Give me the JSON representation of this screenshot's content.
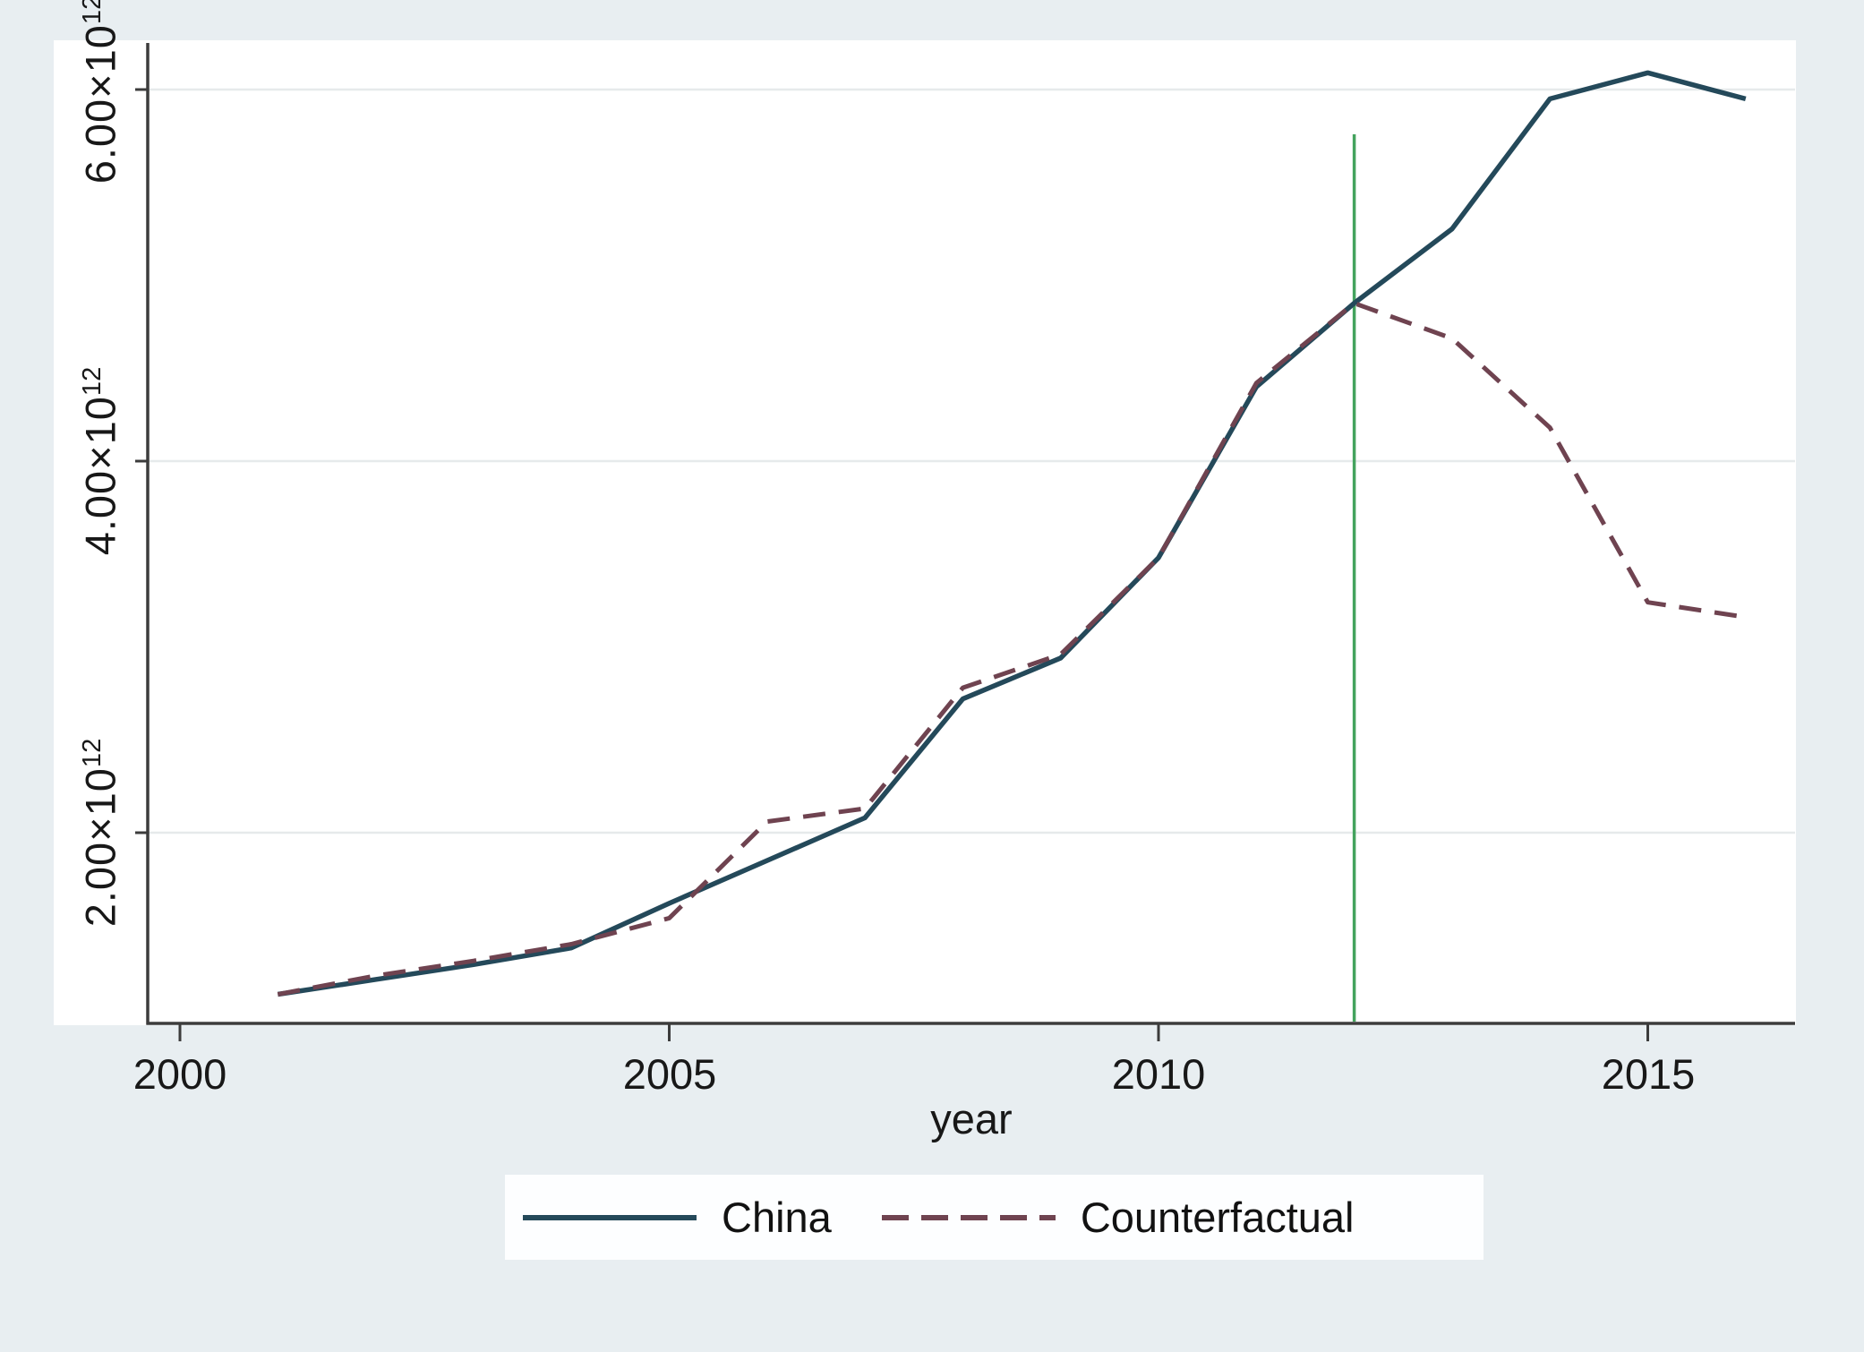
{
  "figure": {
    "background_color": "#e8eef1",
    "plot_background_color": "#ffffff",
    "axis_color": "#3c3c3c",
    "gridline_color": "#e6eaeb"
  },
  "axes": {
    "x_label": "year",
    "x_ticks": [
      {
        "label": "2000",
        "value": 2000
      },
      {
        "label": "2005",
        "value": 2005
      },
      {
        "label": "2010",
        "value": 2010
      },
      {
        "label": "2015",
        "value": 2015
      }
    ],
    "y_ticks": [
      {
        "base": "6.00×10",
        "exp": "12",
        "value": 6
      },
      {
        "base": "4.00×10",
        "exp": "12",
        "value": 4
      },
      {
        "base": "2.00×10",
        "exp": "12",
        "value": 2
      }
    ]
  },
  "legend": {
    "items": [
      {
        "label": "China",
        "style": "solid"
      },
      {
        "label": "Counterfactual",
        "style": "dashed"
      }
    ]
  },
  "chart_data": {
    "type": "line",
    "title": "",
    "xlabel": "year",
    "ylabel": "",
    "value_unit": "×10^12",
    "x": [
      2001,
      2002,
      2003,
      2004,
      2005,
      2006,
      2007,
      2008,
      2009,
      2010,
      2011,
      2012,
      2013,
      2014,
      2015,
      2016
    ],
    "series": [
      {
        "name": "China",
        "style": "solid",
        "color": "#24495a",
        "values": [
          1.13,
          1.21,
          1.29,
          1.38,
          1.62,
          1.85,
          2.08,
          2.72,
          2.94,
          3.48,
          4.4,
          4.85,
          5.25,
          5.95,
          6.09,
          5.95
        ]
      },
      {
        "name": "Counterfactual",
        "style": "dashed",
        "color": "#6f4350",
        "values": [
          1.13,
          1.23,
          1.31,
          1.4,
          1.54,
          2.06,
          2.13,
          2.78,
          2.96,
          3.48,
          4.42,
          4.85,
          4.66,
          4.18,
          3.24,
          3.16
        ]
      }
    ],
    "reference_line": {
      "orientation": "vertical",
      "x": 2012,
      "color": "#44a35e"
    },
    "xlim": [
      1999.7,
      2016.6
    ],
    "ylim": [
      1.0,
      6.3
    ],
    "grid": true,
    "gridline_values": [
      2,
      4,
      6
    ],
    "legend_position": "bottom"
  }
}
